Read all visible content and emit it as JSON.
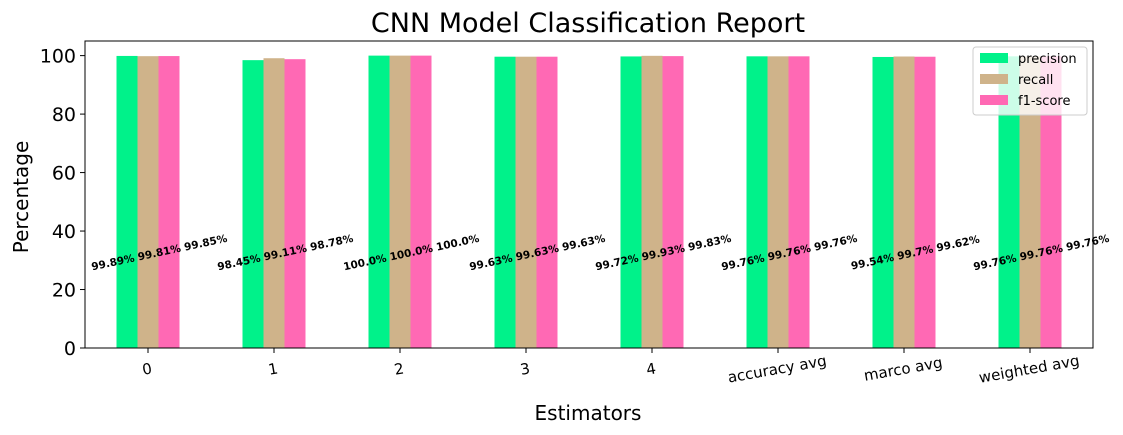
{
  "chart_data": {
    "type": "bar",
    "title": "CNN Model Classification Report",
    "xlabel": "Estimators",
    "ylabel": "Percentage",
    "ylim": [
      0,
      105
    ],
    "yticks": [
      0,
      20,
      40,
      60,
      80,
      100
    ],
    "categories": [
      "0",
      "1",
      "2",
      "3",
      "4",
      "accuracy avg",
      "marco avg",
      "weighted avg"
    ],
    "series": [
      {
        "name": "precision",
        "color": "#00f28a",
        "values": [
          99.89,
          98.45,
          100.0,
          99.63,
          99.72,
          99.76,
          99.54,
          99.76
        ],
        "labels": [
          "99.89%",
          "98.45%",
          "100.0%",
          "99.63%",
          "99.72%",
          "99.76%",
          "99.54%",
          "99.76%"
        ]
      },
      {
        "name": "recall",
        "color": "#cfb38a",
        "values": [
          99.81,
          99.11,
          100.0,
          99.63,
          99.93,
          99.76,
          99.7,
          99.76
        ],
        "labels": [
          "99.81%",
          "99.11%",
          "100.0%",
          "99.63%",
          "99.93%",
          "99.76%",
          "99.7%",
          "99.76%"
        ]
      },
      {
        "name": "f1-score",
        "color": "#ff69b4",
        "values": [
          99.85,
          98.78,
          100.0,
          99.63,
          99.83,
          99.76,
          99.62,
          99.76
        ],
        "labels": [
          "99.85%",
          "98.78%",
          "100.0%",
          "99.63%",
          "99.83%",
          "99.76%",
          "99.62%",
          "99.76%"
        ]
      }
    ],
    "legend_position": "top-right",
    "grid": false
  }
}
